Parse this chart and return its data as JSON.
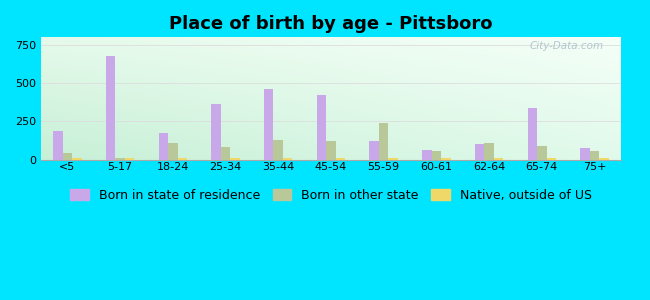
{
  "title": "Place of birth by age - Pittsboro",
  "categories": [
    "<5",
    "5-17",
    "18-24",
    "25-34",
    "35-44",
    "45-54",
    "55-59",
    "60-61",
    "62-64",
    "65-74",
    "75+"
  ],
  "born_in_state": [
    185,
    680,
    175,
    365,
    460,
    420,
    120,
    65,
    105,
    340,
    75
  ],
  "born_other_state": [
    45,
    10,
    110,
    80,
    130,
    120,
    240,
    55,
    110,
    90,
    55
  ],
  "native_outside_us": [
    10,
    8,
    8,
    8,
    8,
    8,
    8,
    8,
    8,
    8,
    8
  ],
  "ylim": [
    0,
    800
  ],
  "yticks": [
    0,
    250,
    500,
    750
  ],
  "bar_width": 0.18,
  "color_state": "#c8a8e8",
  "color_other": "#b8c898",
  "color_native": "#f0d868",
  "background_outer": "#00e5ff",
  "grid_color": "#dddddd",
  "title_fontsize": 13,
  "tick_fontsize": 8,
  "legend_fontsize": 9
}
